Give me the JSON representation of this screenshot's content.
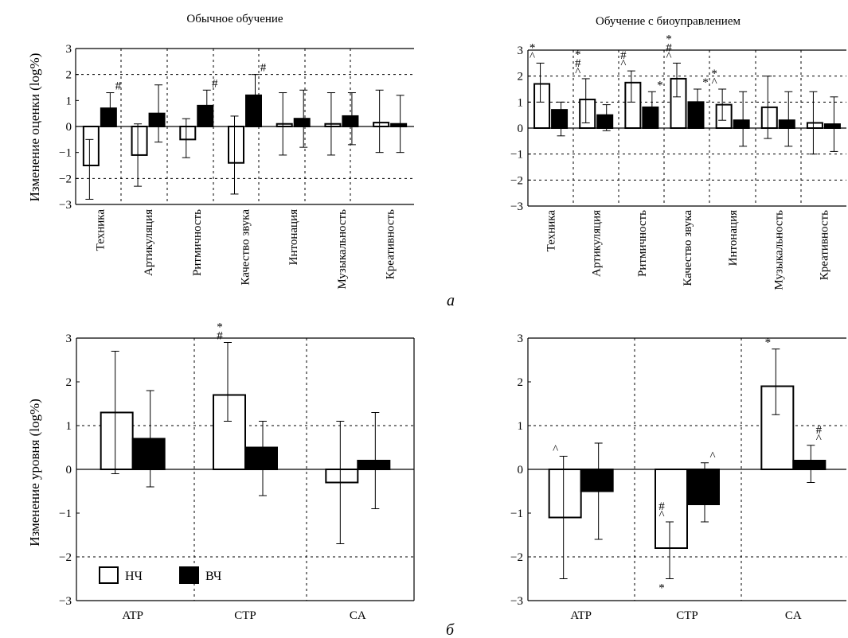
{
  "panel_labels": {
    "a": "а",
    "b": "б"
  },
  "legend": {
    "low_label": "НЧ",
    "high_label": "ВЧ"
  },
  "colors": {
    "low": "#ffffff",
    "high": "#000000",
    "stroke": "#000000"
  },
  "chart_data": [
    {
      "type": "bar",
      "title": "Обычное обучение",
      "ylabel": "Изменение оценки (log%)",
      "ylim": [
        -3,
        3
      ],
      "yticks": [
        "-3",
        "-2",
        "-1",
        "0",
        "1",
        "2",
        "3"
      ],
      "grid": "dotted, at y=-2 and y=2 and between categories",
      "categories": [
        "Техника",
        "Артикуляция",
        "Ритмичность",
        "Качество звука",
        "Интонация",
        "Музыкальность",
        "Креативность"
      ],
      "series": [
        {
          "name": "НЧ",
          "values": [
            -1.5,
            -1.1,
            -0.5,
            -1.4,
            0.1,
            0.1,
            0.15
          ],
          "err_low": [
            -2.8,
            -2.3,
            -1.2,
            -2.6,
            -1.1,
            -1.1,
            -1.0
          ],
          "err_high": [
            -0.5,
            0.1,
            0.3,
            0.4,
            1.3,
            1.3,
            1.4
          ]
        },
        {
          "name": "ВЧ",
          "values": [
            0.7,
            0.5,
            0.8,
            1.2,
            0.3,
            0.4,
            0.1
          ],
          "err_low": [
            0.1,
            -0.6,
            0.1,
            0.3,
            -0.8,
            -0.7,
            -1.0
          ],
          "err_high": [
            1.3,
            1.6,
            1.4,
            2.0,
            1.4,
            1.3,
            1.2
          ]
        }
      ],
      "annotations": [
        {
          "cat": 0,
          "series": 1,
          "text": "#"
        },
        {
          "cat": 2,
          "series": 1,
          "text": "#"
        },
        {
          "cat": 3,
          "series": 1,
          "text": "#"
        }
      ]
    },
    {
      "type": "bar",
      "title": "Обучение с биоуправлением",
      "ylim": [
        -3,
        3
      ],
      "yticks": [
        "-3",
        "-2",
        "-1",
        "0",
        "1",
        "2",
        "3"
      ],
      "grid": "dotted, at y=-2,-1,1,2 and between categories",
      "categories": [
        "Техника",
        "Артикуляция",
        "Ритмичность",
        "Качество звука",
        "Интонация",
        "Музыкальность",
        "Креативность"
      ],
      "series": [
        {
          "name": "НЧ",
          "values": [
            1.7,
            1.1,
            1.75,
            1.9,
            0.9,
            0.8,
            0.2
          ],
          "err_low": [
            1.0,
            0.2,
            1.0,
            1.2,
            0.3,
            -0.4,
            -1.0
          ],
          "err_high": [
            2.5,
            1.9,
            2.2,
            2.5,
            1.5,
            2.0,
            1.4
          ]
        },
        {
          "name": "ВЧ",
          "values": [
            0.7,
            0.5,
            0.8,
            1.0,
            0.3,
            0.3,
            0.15
          ],
          "err_low": [
            -0.3,
            -0.1,
            0.1,
            0.4,
            -0.7,
            -0.7,
            -0.9
          ],
          "err_high": [
            1.0,
            0.9,
            1.4,
            1.5,
            1.4,
            1.4,
            1.2
          ]
        }
      ],
      "annotations": [
        {
          "cat": 0,
          "series": 0,
          "text": "^"
        },
        {
          "cat": 0,
          "series": 0,
          "text": "*"
        },
        {
          "cat": 1,
          "series": 0,
          "text": "^"
        },
        {
          "cat": 1,
          "series": 0,
          "text": "#"
        },
        {
          "cat": 1,
          "series": 0,
          "text": "*"
        },
        {
          "cat": 2,
          "series": 0,
          "text": "^"
        },
        {
          "cat": 2,
          "series": 0,
          "text": "#"
        },
        {
          "cat": 2,
          "series": 1,
          "text": "*"
        },
        {
          "cat": 3,
          "series": 0,
          "text": "^"
        },
        {
          "cat": 3,
          "series": 0,
          "text": "#"
        },
        {
          "cat": 3,
          "series": 0,
          "text": "*"
        },
        {
          "cat": 3,
          "series": 1,
          "text": "*"
        },
        {
          "cat": 4,
          "series": 0,
          "text": "^"
        },
        {
          "cat": 4,
          "series": 0,
          "text": "*"
        }
      ]
    },
    {
      "type": "bar",
      "ylabel": "Изменение уровня (log%)",
      "ylim": [
        -3,
        3
      ],
      "yticks": [
        "-3",
        "-2",
        "-1",
        "0",
        "1",
        "2",
        "3"
      ],
      "grid": "dotted, at y=-2 and y=1 and between categories",
      "categories": [
        "ATP",
        "CTP",
        "CA"
      ],
      "series": [
        {
          "name": "НЧ",
          "values": [
            1.3,
            1.7,
            -0.3
          ],
          "err_low": [
            -0.1,
            1.1,
            -1.7
          ],
          "err_high": [
            2.7,
            2.9,
            1.1
          ]
        },
        {
          "name": "ВЧ",
          "values": [
            0.7,
            0.5,
            0.2
          ],
          "err_low": [
            -0.4,
            -0.6,
            -0.9
          ],
          "err_high": [
            1.8,
            1.1,
            1.3
          ]
        }
      ],
      "annotations": [
        {
          "cat": 1,
          "series": 0,
          "text": "#"
        },
        {
          "cat": 1,
          "series": 0,
          "text": "*"
        }
      ]
    },
    {
      "type": "bar",
      "ylim": [
        -3,
        3
      ],
      "yticks": [
        "-3",
        "-2",
        "-1",
        "0",
        "1",
        "2",
        "3"
      ],
      "grid": "dotted, at y=-2 and y=1 and between categories",
      "categories": [
        "ATP",
        "CTP",
        "CA"
      ],
      "series": [
        {
          "name": "НЧ",
          "values": [
            -1.1,
            -1.8,
            1.9
          ],
          "err_low": [
            -2.5,
            -2.5,
            1.25
          ],
          "err_high": [
            0.3,
            -1.2,
            2.75
          ]
        },
        {
          "name": "ВЧ",
          "values": [
            -0.5,
            -0.8,
            0.2
          ],
          "err_low": [
            -1.6,
            -1.2,
            -0.3
          ],
          "err_high": [
            0.6,
            0.15,
            0.55
          ]
        }
      ],
      "annotations": [
        {
          "cat": 0,
          "series": 0,
          "text": "^"
        },
        {
          "cat": 1,
          "series": 0,
          "text": "^"
        },
        {
          "cat": 1,
          "series": 0,
          "text": "#"
        },
        {
          "cat": 1,
          "series": 0,
          "text": "*"
        },
        {
          "cat": 1,
          "series": 1,
          "text": "^"
        },
        {
          "cat": 2,
          "series": 0,
          "text": "*"
        },
        {
          "cat": 2,
          "series": 1,
          "text": "^"
        },
        {
          "cat": 2,
          "series": 1,
          "text": "#"
        }
      ]
    }
  ]
}
